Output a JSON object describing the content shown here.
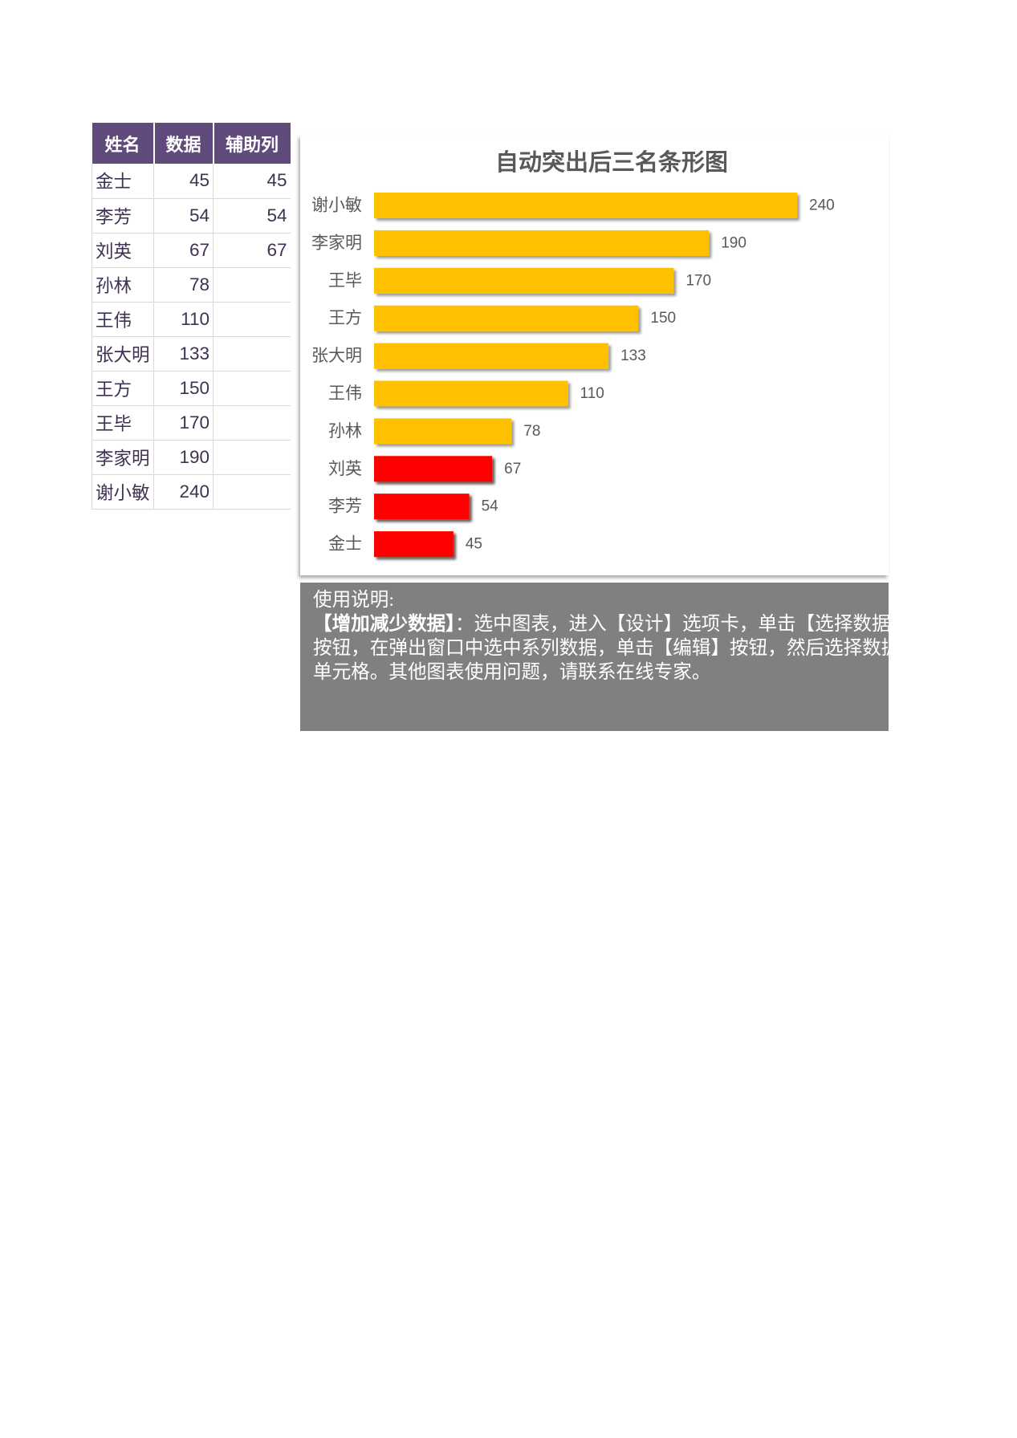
{
  "table": {
    "header_color": "#604A7B",
    "headers": [
      "姓名",
      "数据",
      "辅助列"
    ],
    "rows": [
      {
        "name": "金士",
        "value": "45",
        "helper": "45"
      },
      {
        "name": "李芳",
        "value": "54",
        "helper": "54"
      },
      {
        "name": "刘英",
        "value": "67",
        "helper": "67"
      },
      {
        "name": "孙林",
        "value": "78",
        "helper": ""
      },
      {
        "name": "王伟",
        "value": "110",
        "helper": ""
      },
      {
        "name": "张大明",
        "value": "133",
        "helper": ""
      },
      {
        "name": "王方",
        "value": "150",
        "helper": ""
      },
      {
        "name": "王毕",
        "value": "170",
        "helper": ""
      },
      {
        "name": "李家明",
        "value": "190",
        "helper": ""
      },
      {
        "name": "谢小敏",
        "value": "240",
        "helper": ""
      }
    ]
  },
  "chart_data": {
    "type": "bar",
    "orientation": "horizontal",
    "title": "自动突出后三名条形图",
    "categories": [
      "金士",
      "李芳",
      "刘英",
      "孙林",
      "王伟",
      "张大明",
      "王方",
      "王毕",
      "李家明",
      "谢小敏"
    ],
    "series": [
      {
        "values": [
          45,
          54,
          67,
          78,
          110,
          133,
          150,
          170,
          190,
          240
        ],
        "color": "#FFC000"
      },
      {
        "values": [
          45,
          54,
          67,
          null,
          null,
          null,
          null,
          null,
          null,
          null
        ],
        "color": "#FF0000"
      }
    ],
    "data_labels": true,
    "xlim": [
      0,
      250
    ],
    "value_axis_visible": false,
    "grid": false,
    "legend": "none"
  },
  "note": {
    "background": "#808080",
    "heading": "使用说明:",
    "lines": [
      {
        "bold": "【增加减少数据】",
        "text": "：选中图表，进入【设计】选项卡，单击【选择数据"
      },
      {
        "text": "按钮，在弹出窗口中选中系列数据，单击【编辑】按钮，然后选择数据"
      },
      {
        "text": "单元格。其他图表使用问题，请联系在线专家。"
      }
    ]
  }
}
